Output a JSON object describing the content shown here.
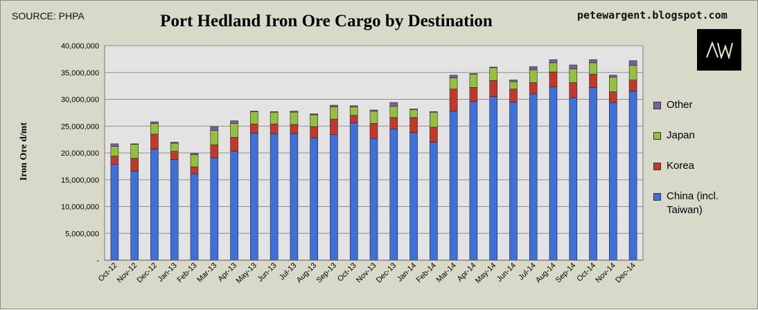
{
  "header": {
    "source": "SOURCE: PHPA",
    "title": "Port Hedland Iron Ore Cargo by Destination",
    "blog": "petewargent.blogspot.com",
    "logo_text": "AW"
  },
  "colors": {
    "background": "#d9d9c9",
    "plot_area": "#e3e3e3",
    "grid": "#8c8c8c",
    "China (incl. Taiwan)": "#3f6fd8",
    "Korea": "#c0392b",
    "Japan": "#95bf3f",
    "Other": "#7d5fa0"
  },
  "chart_data": {
    "type": "bar",
    "stacked": true,
    "title": "Port Hedland Iron Ore Cargo by Destination",
    "xlabel": "",
    "ylabel": "Iron Ore d/mt",
    "ylim": [
      0,
      40000000
    ],
    "y_ticks": [
      "-",
      "5,000,000",
      "10,000,000",
      "15,000,000",
      "20,000,000",
      "25,000,000",
      "30,000,000",
      "35,000,000",
      "40,000,000"
    ],
    "grid": true,
    "legend_position": "right",
    "categories": [
      "Oct-12",
      "Nov-12",
      "Dec-12",
      "Jan-13",
      "Feb-13",
      "Mar-13",
      "Apr-13",
      "May-13",
      "Jun-13",
      "Jul-13",
      "Aug-13",
      "Sep-13",
      "Oct-13",
      "Nov-13",
      "Dec-13",
      "Jan-14",
      "Feb-14",
      "Mar-14",
      "Apr-14",
      "May-14",
      "Jun-14",
      "Jul-14",
      "Aug-14",
      "Sep-14",
      "Oct-14",
      "Nov-14",
      "Dec-14"
    ],
    "series": [
      {
        "name": "China (incl. Taiwan)",
        "values": [
          17900000,
          16600000,
          20700000,
          18800000,
          16100000,
          19100000,
          20300000,
          23700000,
          23600000,
          23600000,
          22800000,
          23400000,
          25600000,
          22700000,
          24500000,
          23800000,
          22000000,
          27800000,
          29600000,
          30500000,
          29500000,
          31000000,
          32300000,
          30300000,
          32200000,
          29400000,
          31500000
        ]
      },
      {
        "name": "Korea",
        "values": [
          1500000,
          2400000,
          2800000,
          1500000,
          1300000,
          2400000,
          2600000,
          1700000,
          1800000,
          1700000,
          2100000,
          2900000,
          1400000,
          2800000,
          2100000,
          2800000,
          2800000,
          4100000,
          2600000,
          3000000,
          2400000,
          2100000,
          2800000,
          2800000,
          2500000,
          2000000,
          2100000
        ]
      },
      {
        "name": "Japan",
        "values": [
          1800000,
          2600000,
          2000000,
          1500000,
          2300000,
          2700000,
          2600000,
          2300000,
          2200000,
          2300000,
          2200000,
          2300000,
          1600000,
          2300000,
          2100000,
          1500000,
          2800000,
          2100000,
          2500000,
          2400000,
          1400000,
          2400000,
          1700000,
          2600000,
          2100000,
          2700000,
          2700000
        ]
      },
      {
        "name": "Other",
        "values": [
          500000,
          100000,
          300000,
          200000,
          200000,
          700000,
          500000,
          100000,
          100000,
          200000,
          200000,
          300000,
          200000,
          200000,
          700000,
          100000,
          100000,
          500000,
          100000,
          100000,
          300000,
          600000,
          600000,
          700000,
          600000,
          400000,
          900000
        ]
      }
    ]
  },
  "legend": {
    "items": [
      {
        "label": "Other",
        "color": "#7d5fa0"
      },
      {
        "label": "Japan",
        "color": "#95bf3f"
      },
      {
        "label": "Korea",
        "color": "#c0392b"
      },
      {
        "label": "China (incl. Taiwan)",
        "color": "#3f6fd8"
      }
    ]
  }
}
